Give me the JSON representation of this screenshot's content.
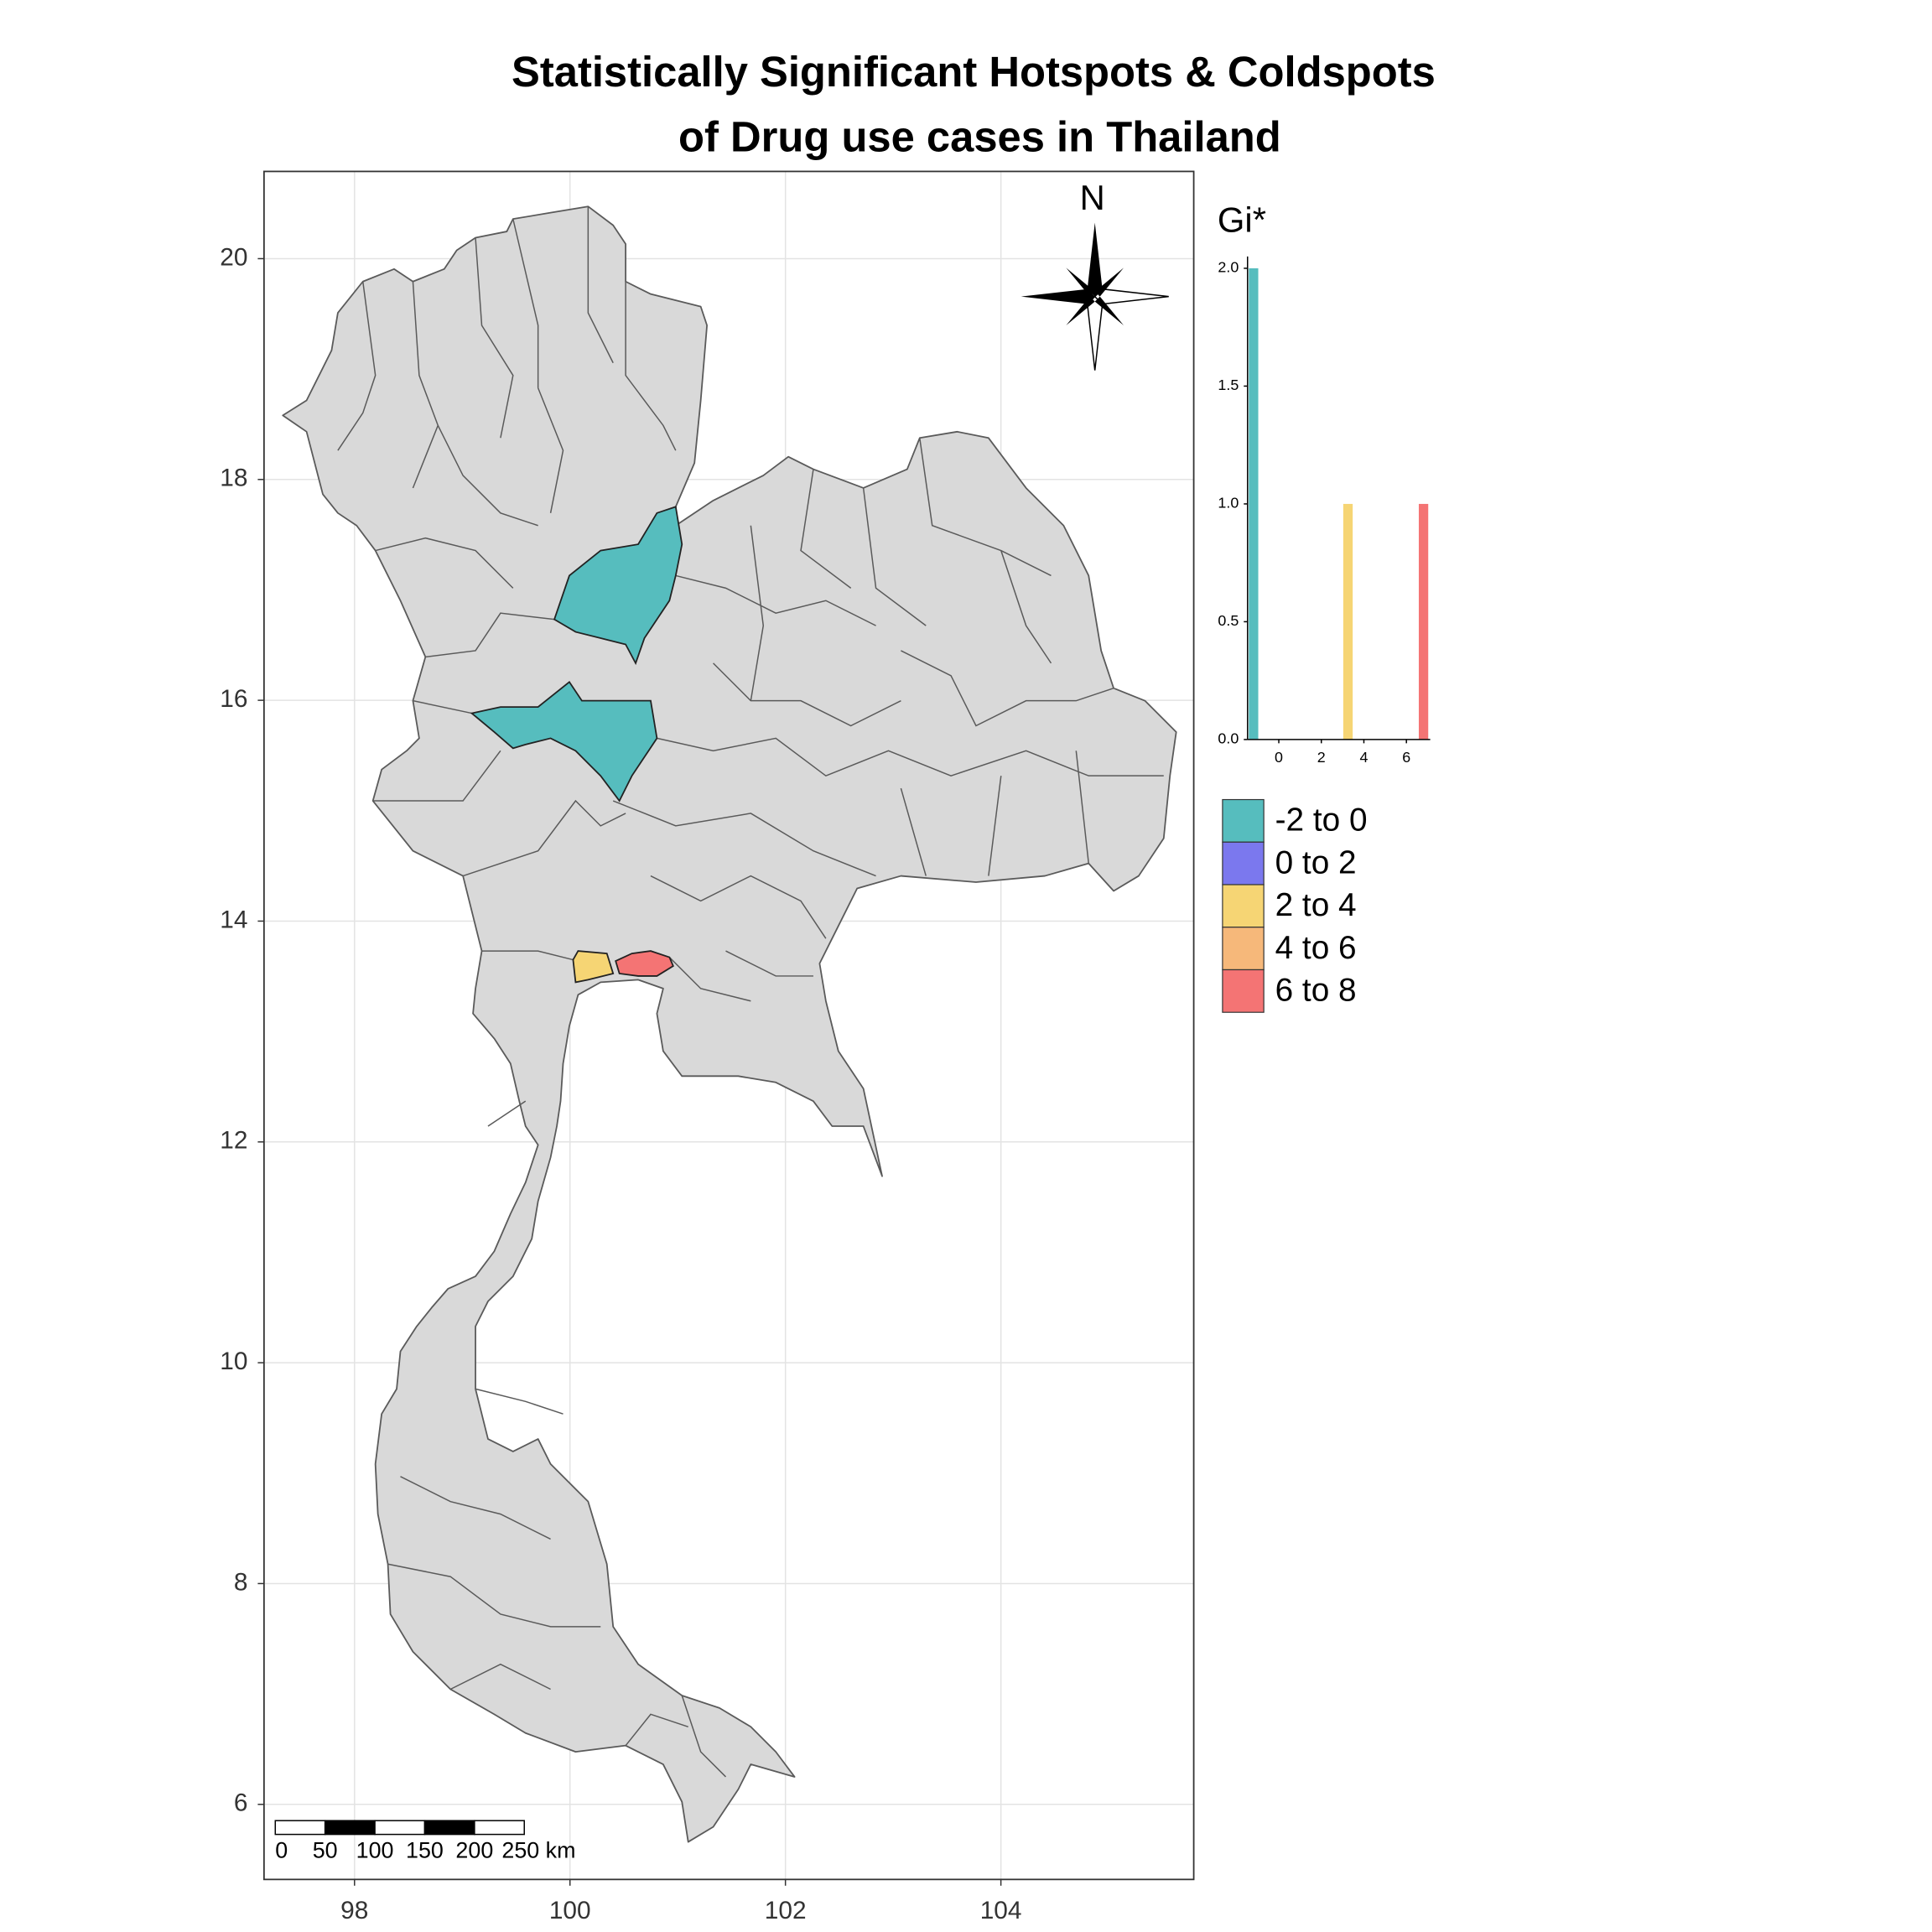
{
  "chart_data": [
    {
      "type": "map",
      "title": [
        "Statistically Significant Hotspots & Coldspots",
        "of Drug use cases in Thailand"
      ],
      "xlim": [
        97.16,
        105.79
      ],
      "ylim": [
        5.32,
        20.79
      ],
      "xticks": [
        98,
        100,
        102,
        104
      ],
      "yticks": [
        6,
        8,
        10,
        12,
        14,
        16,
        18,
        20
      ],
      "grid": true,
      "north": "N",
      "scale_bar": [
        "0",
        "50",
        "100",
        "150",
        "200",
        "250 km"
      ],
      "legend": [
        {
          "label": "-2 to 0",
          "color": "#56bdbe"
        },
        {
          "label": "0 to 2",
          "color": "#7b78ee"
        },
        {
          "label": "2 to 4",
          "color": "#f6d574"
        },
        {
          "label": "4 to 6",
          "color": "#f6b87a"
        },
        {
          "label": "6 to 8",
          "color": "#f47474"
        }
      ]
    },
    {
      "type": "histogram",
      "title": "Gi*",
      "bins": [
        -1.41,
        -0.966,
        -0.522,
        -0.078,
        0.366,
        0.81,
        1.254,
        1.698,
        2.142,
        2.586,
        3.03,
        3.474,
        3.918,
        4.362,
        4.806,
        5.25,
        5.694,
        6.138,
        6.582,
        7.026
      ],
      "counts": [
        2,
        0,
        0,
        0,
        0,
        0,
        0,
        0,
        0,
        0,
        1,
        0,
        0,
        0,
        0,
        0,
        0,
        0,
        1
      ],
      "colors": [
        "#56bdbe",
        "#56bdbe",
        "#56bdbe",
        "#56bdbe",
        "#7b78ee",
        "#7b78ee",
        "#7b78ee",
        "#7b78ee",
        "#7b78ee",
        "#f6d574",
        "#f6d574",
        "#f6d574",
        "#f6d574",
        "#f6b87a",
        "#f6b87a",
        "#f6b87a",
        "#f6b87a",
        "#f6b87a",
        "#f47474"
      ],
      "xlim": [
        -1.47,
        7.12
      ],
      "ylim": [
        0,
        2.05
      ],
      "xticks": [
        0,
        2,
        4,
        6
      ],
      "yticks": [
        {
          "value": 0,
          "label": "0.0"
        },
        0.5,
        {
          "value": 1,
          "label": "1.0"
        },
        1.5,
        {
          "value": 2,
          "label": "2.0"
        }
      ]
    }
  ]
}
